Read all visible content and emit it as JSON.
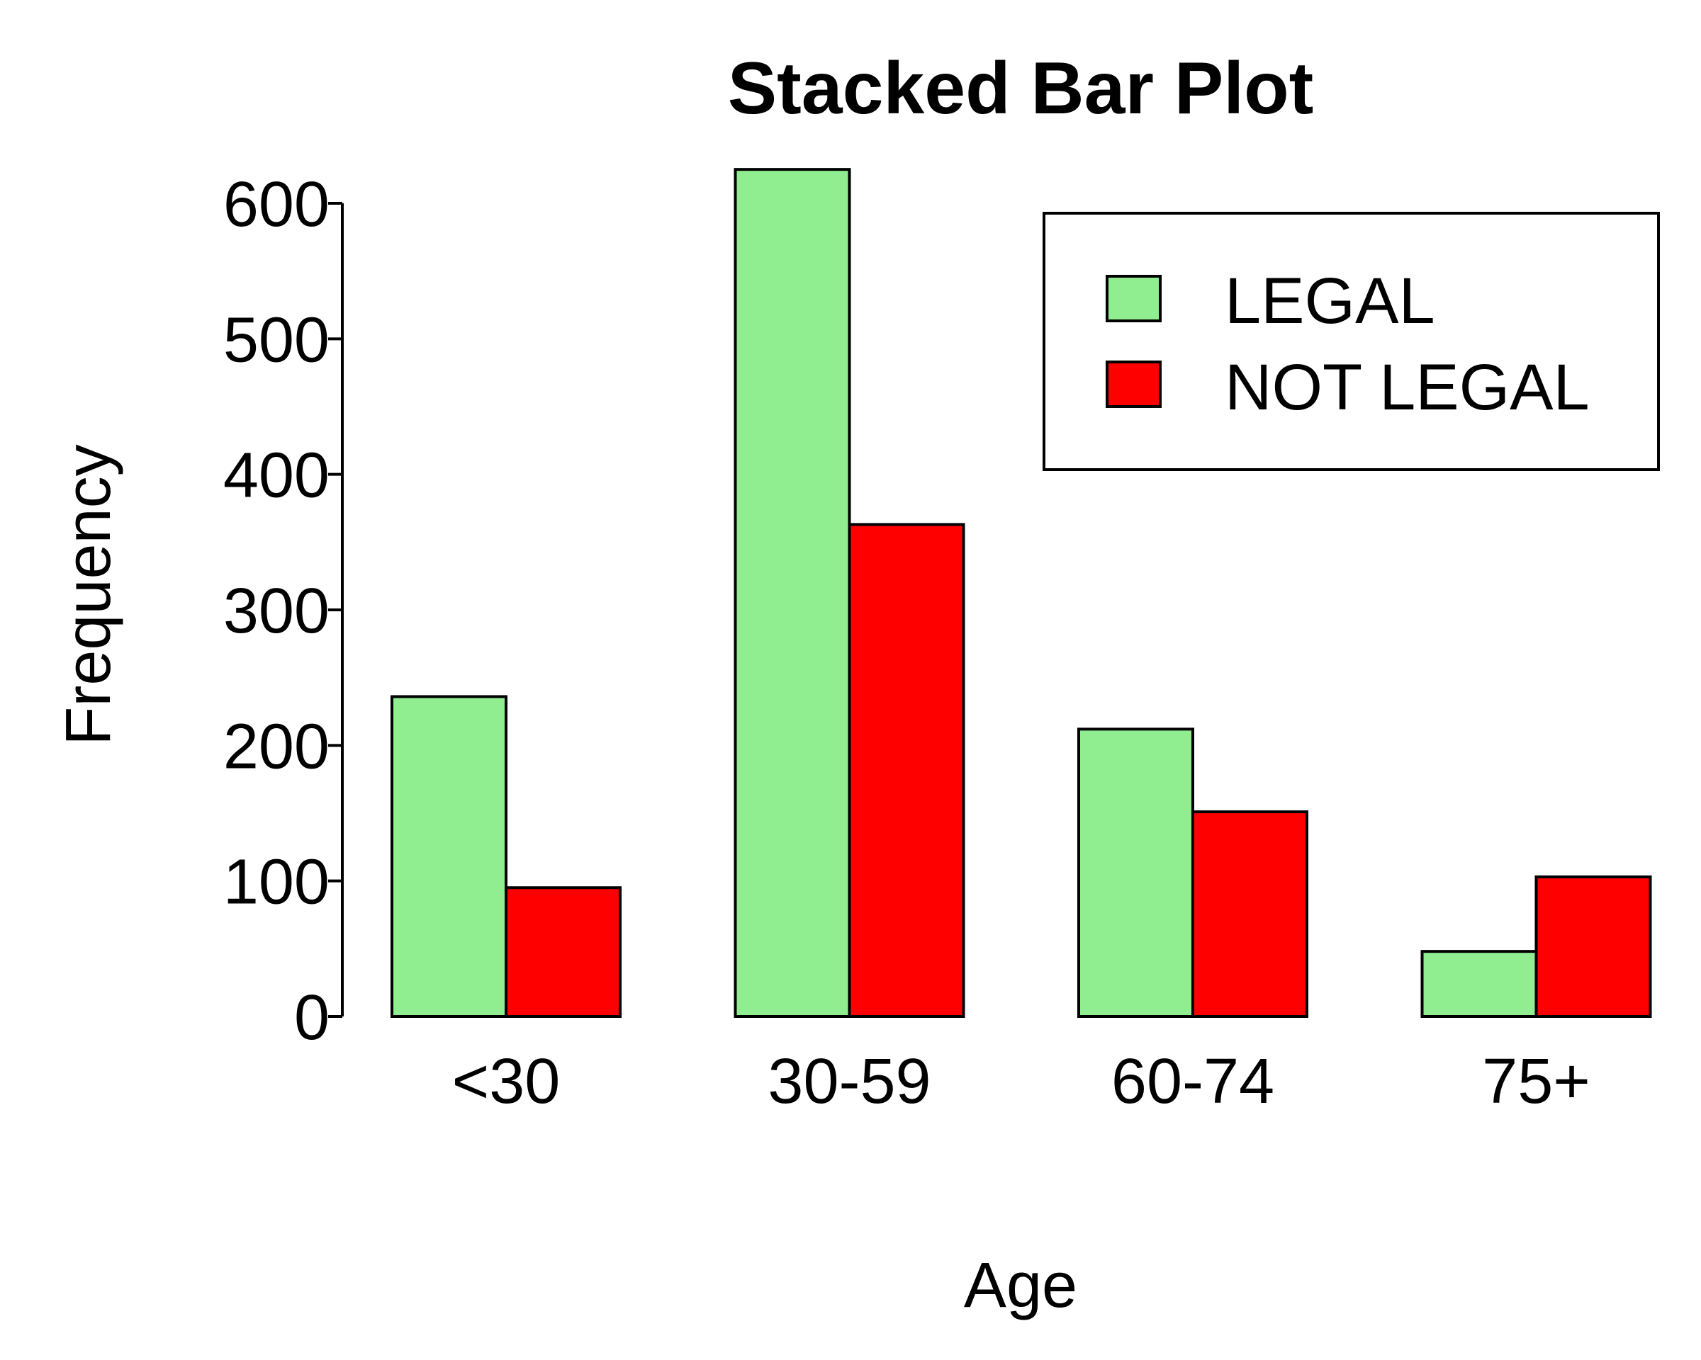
{
  "chart_data": {
    "type": "bar",
    "title": "Stacked Bar Plot",
    "xlabel": "Age",
    "ylabel": "Frequency",
    "categories": [
      "<30",
      "30-59",
      "60-74",
      "75+"
    ],
    "series": [
      {
        "name": "LEGAL",
        "color": "#90EE90",
        "values": [
          236,
          625,
          212,
          48
        ]
      },
      {
        "name": "NOT LEGAL",
        "color": "#FF0000",
        "values": [
          95,
          363,
          151,
          103
        ]
      }
    ],
    "ylim": [
      0,
      600
    ],
    "yticks": [
      0,
      100,
      200,
      300,
      400,
      500,
      600
    ],
    "grid": false,
    "legend_position": "top-right"
  }
}
